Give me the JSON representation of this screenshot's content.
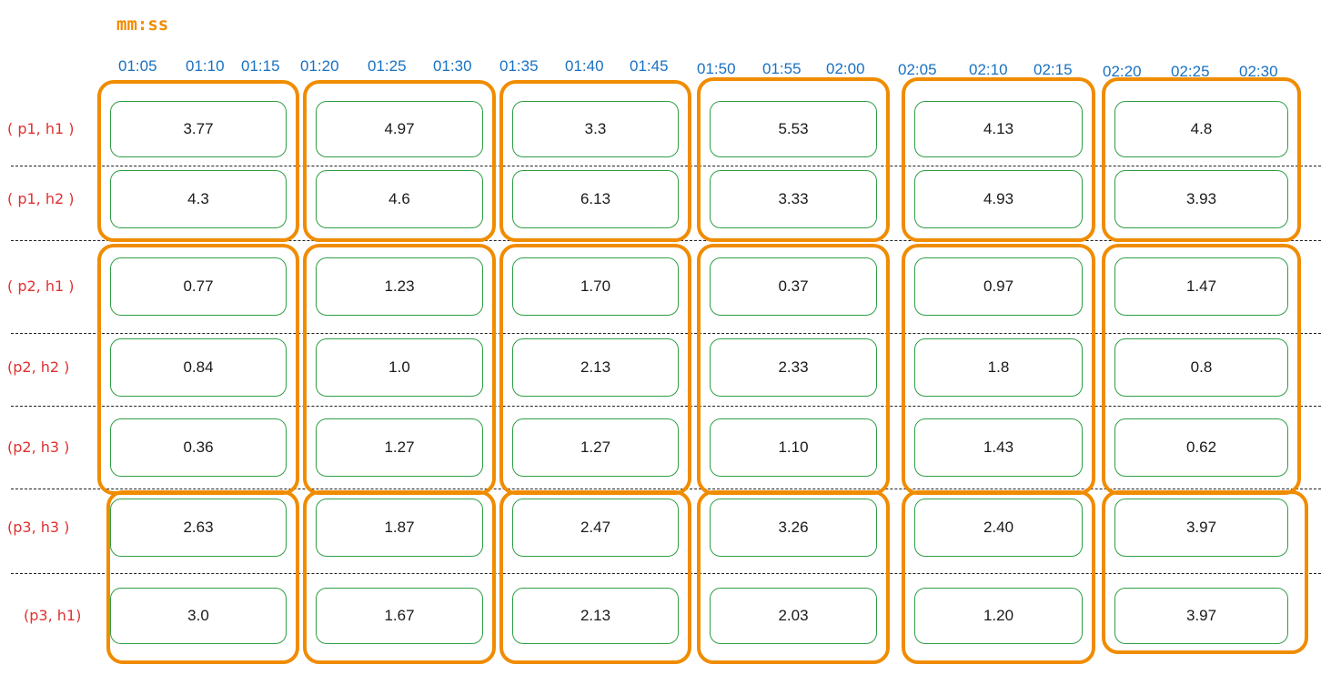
{
  "title": "mm:ss",
  "colors": {
    "title": "#f08c00",
    "tick": "#1971c2",
    "row_label": "#e03131",
    "group_border": "#f08c00",
    "cell_border": "#2f9e44",
    "separator": "#222222"
  },
  "time_ticks": [
    "01:05",
    "01:10",
    "01:15",
    "01:20",
    "01:25",
    "01:30",
    "01:35",
    "01:40",
    "01:45",
    "01:50",
    "01:55",
    "02:00",
    "02:05",
    "02:10",
    "02:15",
    "02:20",
    "02:25",
    "02:30"
  ],
  "rows": [
    {
      "label": "( p1, h1 )",
      "values": [
        "3.77",
        "4.97",
        "3.3",
        "5.53",
        "4.13",
        "4.8"
      ]
    },
    {
      "label": "( p1, h2 )",
      "values": [
        "4.3",
        "4.6",
        "6.13",
        "3.33",
        "4.93",
        "3.93"
      ]
    },
    {
      "label": "( p2, h1 )",
      "values": [
        "0.77",
        "1.23",
        "1.70",
        "0.37",
        "0.97",
        "1.47"
      ]
    },
    {
      "label": "(p2, h2 )",
      "values": [
        "0.84",
        "1.0",
        "2.13",
        "2.33",
        "1.8",
        "0.8"
      ]
    },
    {
      "label": "(p2, h3 )",
      "values": [
        "0.36",
        "1.27",
        "1.27",
        "1.10",
        "1.43",
        "0.62"
      ]
    },
    {
      "label": "(p3, h3 )",
      "values": [
        "2.63",
        "1.87",
        "2.47",
        "3.26",
        "2.40",
        "3.97"
      ]
    },
    {
      "label": "(p3, h1)",
      "values": [
        "3.0",
        "1.67",
        "2.13",
        "2.03",
        "1.20",
        "3.97"
      ]
    }
  ]
}
